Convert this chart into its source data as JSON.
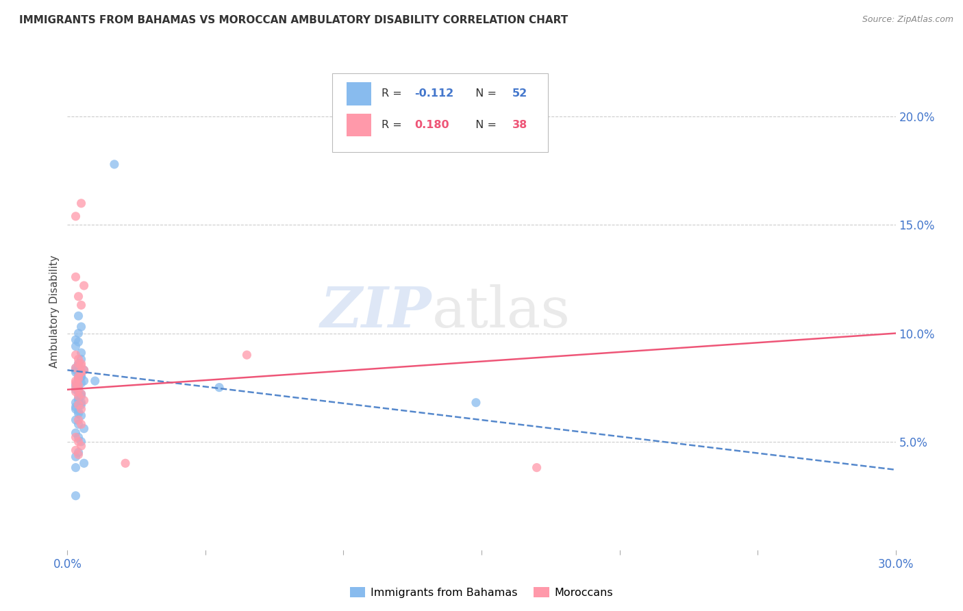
{
  "title": "IMMIGRANTS FROM BAHAMAS VS MOROCCAN AMBULATORY DISABILITY CORRELATION CHART",
  "source": "Source: ZipAtlas.com",
  "ylabel": "Ambulatory Disability",
  "ytick_labels": [
    "20.0%",
    "15.0%",
    "10.0%",
    "5.0%"
  ],
  "ytick_values": [
    0.2,
    0.15,
    0.1,
    0.05
  ],
  "xlim": [
    0.0,
    0.3
  ],
  "ylim": [
    0.0,
    0.22
  ],
  "color_blue": "#88BBEE",
  "color_pink": "#FF99AA",
  "color_blue_line": "#5588CC",
  "color_pink_line": "#EE5577",
  "color_axis": "#4477CC",
  "blue_trend_x": [
    0.0,
    0.3
  ],
  "blue_trend_y": [
    0.083,
    0.037
  ],
  "pink_trend_x": [
    0.0,
    0.3
  ],
  "pink_trend_y": [
    0.074,
    0.1
  ],
  "bahamas_x": [
    0.005,
    0.003,
    0.004,
    0.006,
    0.003,
    0.004,
    0.005,
    0.003,
    0.004,
    0.006,
    0.004,
    0.003,
    0.005,
    0.004,
    0.003,
    0.004,
    0.005,
    0.003,
    0.004,
    0.005,
    0.004,
    0.005,
    0.003,
    0.004,
    0.005,
    0.003,
    0.004,
    0.005,
    0.003,
    0.004,
    0.006,
    0.003,
    0.004,
    0.005,
    0.003,
    0.004,
    0.006,
    0.003,
    0.004,
    0.005,
    0.004,
    0.003,
    0.005,
    0.004,
    0.005,
    0.003,
    0.004,
    0.055,
    0.01,
    0.017,
    0.003,
    0.148
  ],
  "bahamas_y": [
    0.08,
    0.082,
    0.079,
    0.078,
    0.083,
    0.081,
    0.08,
    0.076,
    0.085,
    0.083,
    0.096,
    0.094,
    0.091,
    0.1,
    0.097,
    0.108,
    0.103,
    0.084,
    0.086,
    0.088,
    0.073,
    0.072,
    0.068,
    0.069,
    0.067,
    0.065,
    0.063,
    0.062,
    0.06,
    0.058,
    0.056,
    0.054,
    0.052,
    0.05,
    0.043,
    0.045,
    0.04,
    0.038,
    0.079,
    0.077,
    0.075,
    0.074,
    0.071,
    0.07,
    0.068,
    0.066,
    0.064,
    0.075,
    0.078,
    0.178,
    0.025,
    0.068
  ],
  "moroccan_x": [
    0.004,
    0.005,
    0.003,
    0.006,
    0.004,
    0.005,
    0.003,
    0.004,
    0.005,
    0.003,
    0.006,
    0.004,
    0.005,
    0.003,
    0.004,
    0.006,
    0.004,
    0.005,
    0.003,
    0.004,
    0.005,
    0.003,
    0.004,
    0.005,
    0.003,
    0.004,
    0.005,
    0.003,
    0.004,
    0.005,
    0.003,
    0.004,
    0.005,
    0.003,
    0.004,
    0.065,
    0.021,
    0.17
  ],
  "moroccan_y": [
    0.08,
    0.082,
    0.078,
    0.083,
    0.079,
    0.085,
    0.09,
    0.088,
    0.086,
    0.126,
    0.122,
    0.117,
    0.113,
    0.073,
    0.071,
    0.069,
    0.067,
    0.065,
    0.052,
    0.05,
    0.048,
    0.046,
    0.044,
    0.082,
    0.084,
    0.086,
    0.16,
    0.154,
    0.06,
    0.058,
    0.075,
    0.074,
    0.072,
    0.077,
    0.076,
    0.09,
    0.04,
    0.038
  ]
}
